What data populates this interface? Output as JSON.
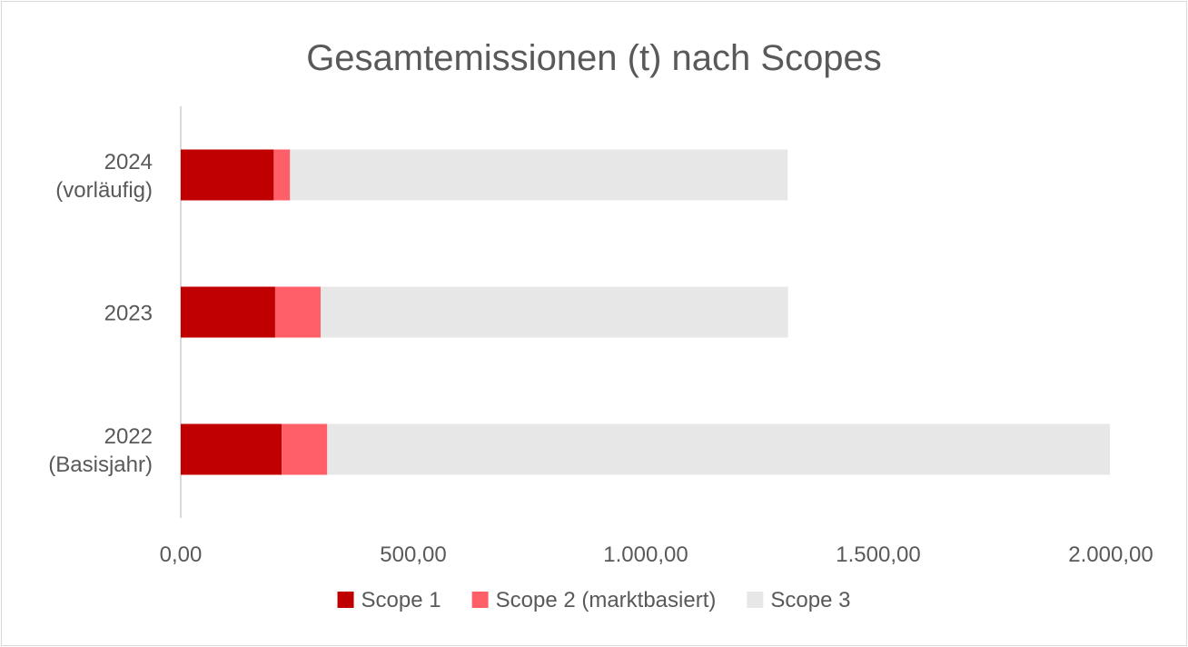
{
  "chart_data": {
    "type": "bar",
    "orientation": "horizontal",
    "stacked": true,
    "title": "Gesamtemissionen (t) nach Scopes",
    "categories": [
      "2024\n(vorläufig)",
      "2023",
      "2022\n(Basisjahr)"
    ],
    "series": [
      {
        "name": "Scope 1",
        "color": "#c00000",
        "values": [
          200,
          203,
          217
        ]
      },
      {
        "name": "Scope 2 (marktbasiert)",
        "color": "#ff5f67",
        "values": [
          35,
          98,
          98
        ]
      },
      {
        "name": "Scope 3",
        "color": "#e7e7e7",
        "values": [
          1070,
          1005,
          1683
        ]
      }
    ],
    "xlim": [
      0,
      2000
    ],
    "xticks": [
      0,
      500,
      1000,
      1500,
      2000
    ],
    "xtick_labels": [
      "0,00",
      "500,00",
      "1.000,00",
      "1.500,00",
      "2.000,00"
    ],
    "xlabel": "",
    "ylabel": "",
    "grid": false,
    "legend": "bottom"
  }
}
